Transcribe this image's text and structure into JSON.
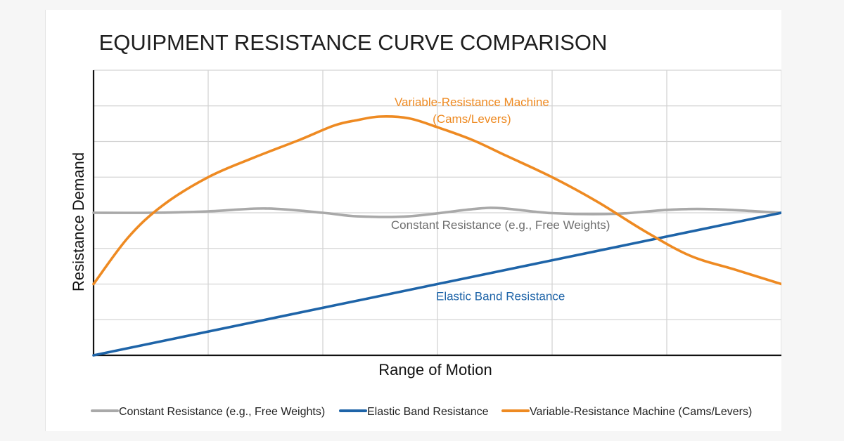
{
  "chart_data": {
    "type": "line",
    "title": "EQUIPMENT RESISTANCE CURVE COMPARISON",
    "xlabel": "Range of Motion",
    "ylabel": "Resistance Demand",
    "xlim": [
      0,
      6
    ],
    "ylim": [
      0,
      8
    ],
    "grid": true,
    "tick_labels_shown": false,
    "legend_position": "bottom",
    "series": [
      {
        "name": "Constant Resistance (e.g., Free Weights)",
        "label": "Constant Resistance (e.g., Free Weights)",
        "color": "#a9a9a9",
        "x": [
          0,
          0.5,
          1.0,
          1.5,
          2.0,
          2.3,
          2.75,
          3.3,
          3.55,
          4.0,
          4.55,
          5.0,
          5.4,
          6.0
        ],
        "y": [
          4.0,
          4.0,
          4.04,
          4.12,
          4.0,
          3.9,
          3.9,
          4.1,
          4.13,
          3.99,
          3.97,
          4.08,
          4.1,
          4.0
        ]
      },
      {
        "name": "Elastic Band Resistance",
        "label": "Elastic Band Resistance",
        "color": "#1e64a8",
        "x": [
          0,
          6
        ],
        "y": [
          0,
          4.0
        ]
      },
      {
        "name": "Variable-Resistance Machine (Cams/Levers)",
        "label": [
          "Variable-Resistance Machine",
          "(Cams/Levers)"
        ],
        "color": "#ee8a22",
        "x": [
          0,
          0.3,
          0.6,
          1.0,
          1.4,
          1.8,
          2.1,
          2.3,
          2.5,
          2.75,
          3.0,
          3.3,
          3.6,
          4.0,
          4.4,
          4.8,
          5.2,
          5.6,
          6.0
        ],
        "y": [
          2.0,
          3.3,
          4.2,
          5.0,
          5.55,
          6.05,
          6.45,
          6.6,
          6.7,
          6.65,
          6.4,
          6.05,
          5.6,
          5.0,
          4.3,
          3.5,
          2.8,
          2.4,
          2.0
        ]
      }
    ]
  }
}
